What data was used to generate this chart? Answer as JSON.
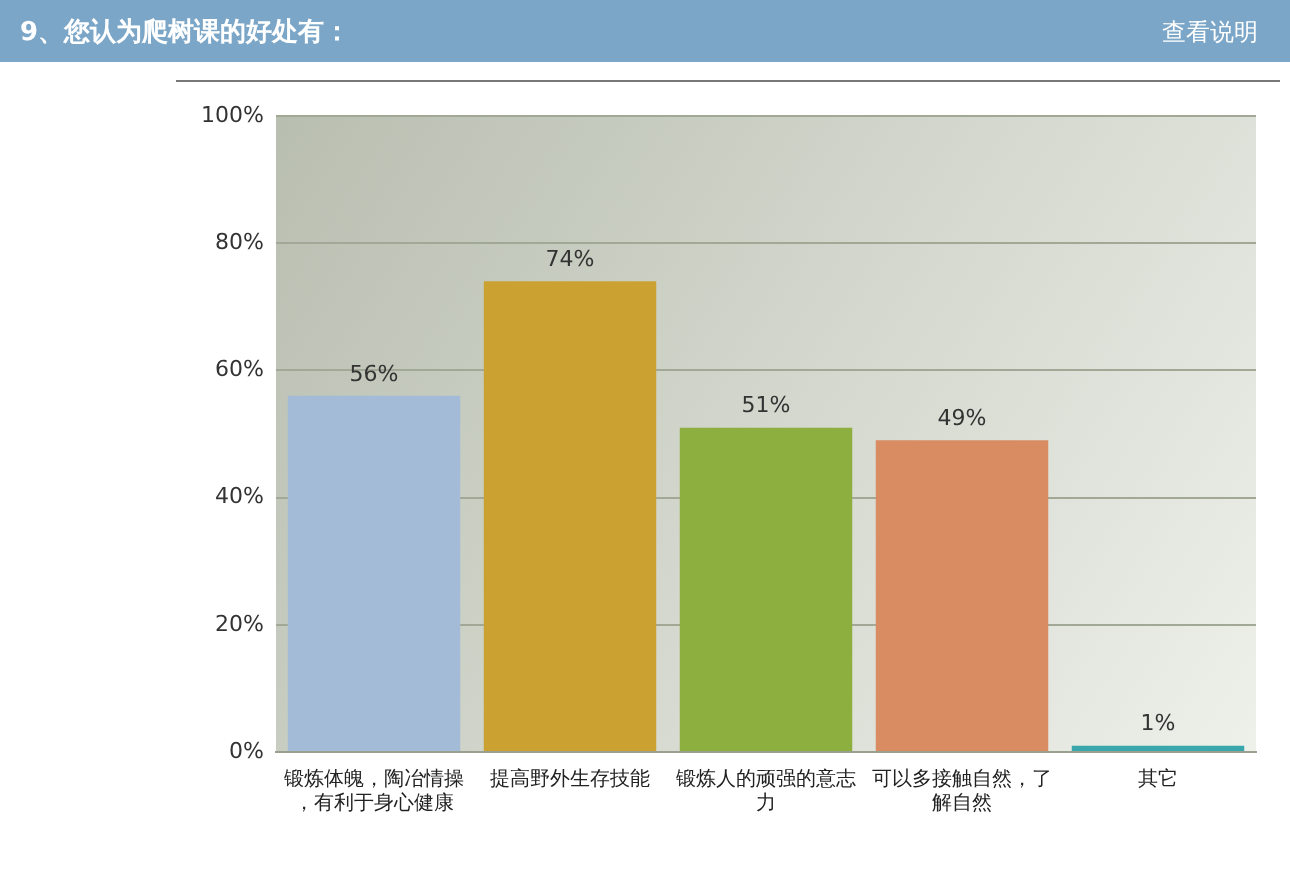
{
  "chart_data": {
    "type": "bar",
    "title": "9、您认为爬树课的好处有：",
    "annotations": [
      "查看说明"
    ],
    "categories": [
      "锻炼体魄，陶冶情操，有利于身心健康",
      "提高野外生存技能",
      "锻炼人的顽强的意志力",
      "可以多接触自然，了解自然",
      "其它"
    ],
    "values": [
      56,
      74,
      51,
      49,
      1
    ],
    "value_labels": [
      "56%",
      "74%",
      "51%",
      "49%",
      "1%"
    ],
    "colors": [
      "#a3bbd6",
      "#cba232",
      "#8caf3f",
      "#d98b62",
      "#3aa7ad"
    ],
    "ylim": [
      0,
      100
    ],
    "yticks": [
      {
        "value": 0,
        "label": "0%"
      },
      {
        "value": 20,
        "label": "20%"
      },
      {
        "value": 40,
        "label": "40%"
      },
      {
        "value": 60,
        "label": "60%"
      },
      {
        "value": 80,
        "label": "80%"
      },
      {
        "value": 100,
        "label": "100%"
      }
    ],
    "grid": "y"
  }
}
